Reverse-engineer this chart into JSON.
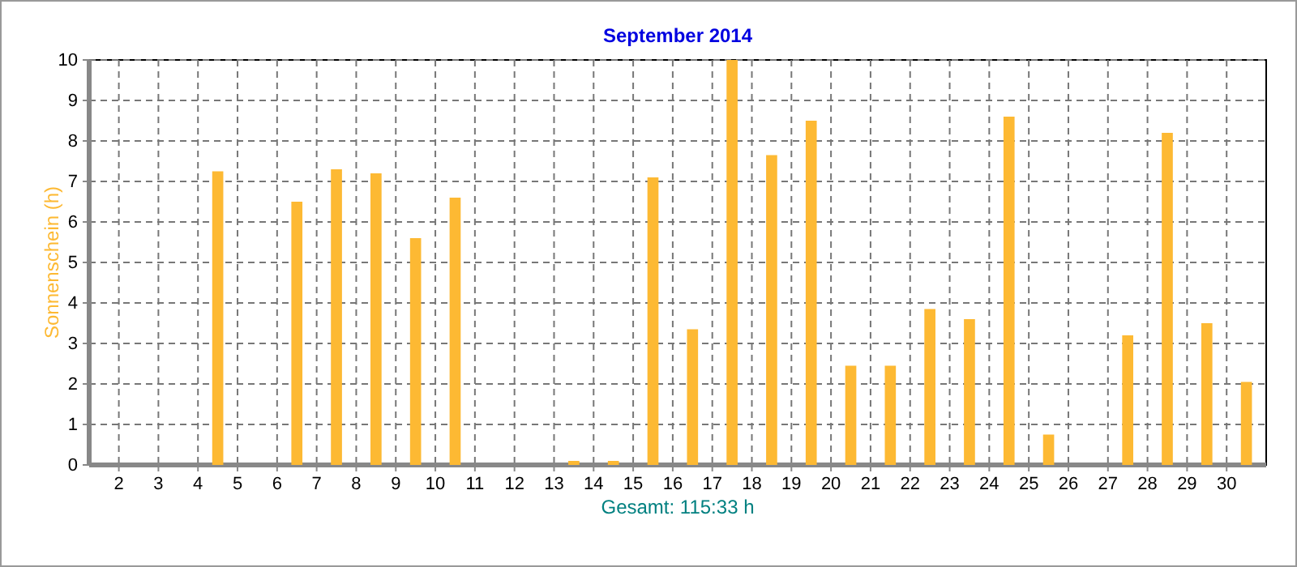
{
  "chart_data": {
    "type": "bar",
    "title": "September 2014",
    "ylabel": "Sonnenschein  (h)",
    "annotations": [
      "Gesamt: 115:33 h"
    ],
    "x": [
      1.5,
      2.5,
      3.5,
      4.5,
      5.5,
      6.5,
      7.5,
      8.5,
      9.5,
      10.5,
      11.5,
      12.5,
      13.5,
      14.5,
      15.5,
      16.5,
      17.5,
      18.5,
      19.5,
      20.5,
      21.5,
      22.5,
      23.5,
      24.5,
      25.5,
      26.5,
      27.5,
      28.5,
      29.5,
      30.5
    ],
    "values": [
      0,
      0,
      0,
      7.25,
      0,
      6.5,
      7.3,
      7.2,
      5.6,
      6.6,
      0,
      0,
      0.1,
      0.1,
      7.1,
      3.35,
      10,
      7.65,
      8.5,
      2.45,
      2.45,
      3.85,
      3.6,
      8.6,
      0.75,
      0,
      3.2,
      8.2,
      3.5,
      2.05
    ],
    "color": "#fdb933",
    "xlim": [
      1.25,
      31
    ],
    "xticks": [
      2,
      3,
      4,
      5,
      6,
      7,
      8,
      9,
      10,
      11,
      12,
      13,
      14,
      15,
      16,
      17,
      18,
      19,
      20,
      21,
      22,
      23,
      24,
      25,
      26,
      27,
      28,
      29,
      30
    ],
    "ylim": [
      0,
      10
    ],
    "yticks": [
      0,
      1,
      2,
      3,
      4,
      5,
      6,
      7,
      8,
      9,
      10
    ],
    "grid": true
  }
}
